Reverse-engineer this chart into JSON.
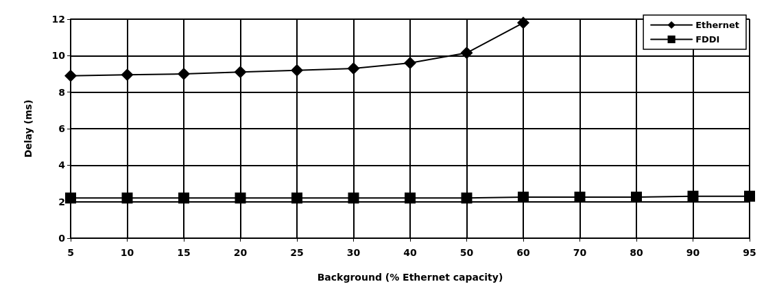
{
  "chart_data": {
    "type": "line",
    "xlabel": "Background (% Ethernet capacity)",
    "ylabel": "Delay (ms)",
    "categories": [
      "5",
      "10",
      "15",
      "20",
      "25",
      "30",
      "40",
      "50",
      "60",
      "70",
      "80",
      "90",
      "95"
    ],
    "series": [
      {
        "name": "Ethernet",
        "color": "#000000",
        "marker": "diamond",
        "values": [
          8.9,
          8.95,
          9.0,
          9.1,
          9.2,
          9.3,
          9.6,
          10.15,
          11.8,
          null,
          null,
          null,
          null
        ]
      },
      {
        "name": "FDDI",
        "color": "#000000",
        "marker": "square",
        "values": [
          2.2,
          2.2,
          2.2,
          2.2,
          2.2,
          2.2,
          2.2,
          2.2,
          2.25,
          2.25,
          2.25,
          2.3,
          2.3
        ]
      }
    ],
    "ylim": [
      0,
      12
    ],
    "yticks": [
      0,
      2,
      4,
      6,
      8,
      10,
      12
    ],
    "grid": true,
    "legend": "top right",
    "line_style": "solid"
  }
}
